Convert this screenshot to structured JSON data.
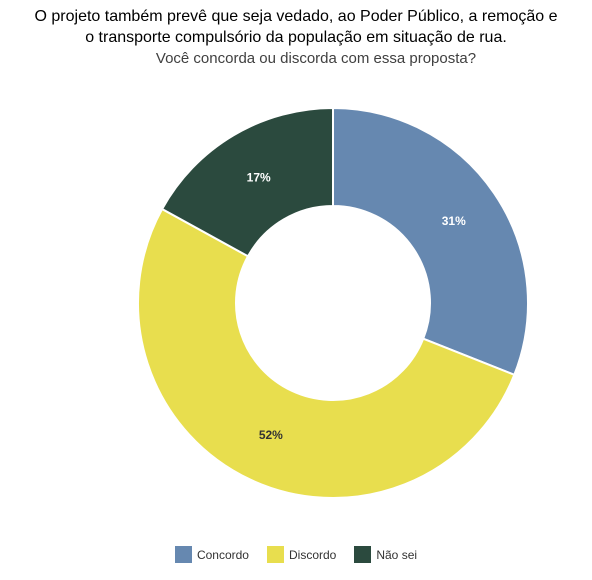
{
  "header": {
    "title_line1": "O projeto também prevê que seja vedado, ao Poder Público, a remoção e",
    "title_line2": "o transporte compulsório da população em situação de rua.",
    "subtitle": "Você concorda ou discorda com essa proposta?"
  },
  "chart_data": {
    "type": "pie",
    "variant": "donut",
    "title": "Você concorda ou discorda com essa proposta?",
    "categories": [
      "Concordo",
      "Discordo",
      "Não sei"
    ],
    "values": [
      31,
      52,
      17
    ],
    "labels": [
      "31%",
      "52%",
      "17%"
    ],
    "unit": "%",
    "colors": [
      "#6688b0",
      "#e8de4e",
      "#2b4a3e"
    ],
    "label_colors": [
      "#ffffff",
      "#333333",
      "#ffffff"
    ],
    "legend_position": "bottom-center"
  },
  "legend": {
    "items": [
      {
        "label": "Concordo",
        "color": "#6688b0"
      },
      {
        "label": "Discordo",
        "color": "#e8de4e"
      },
      {
        "label": "Não sei",
        "color": "#2b4a3e"
      }
    ]
  }
}
